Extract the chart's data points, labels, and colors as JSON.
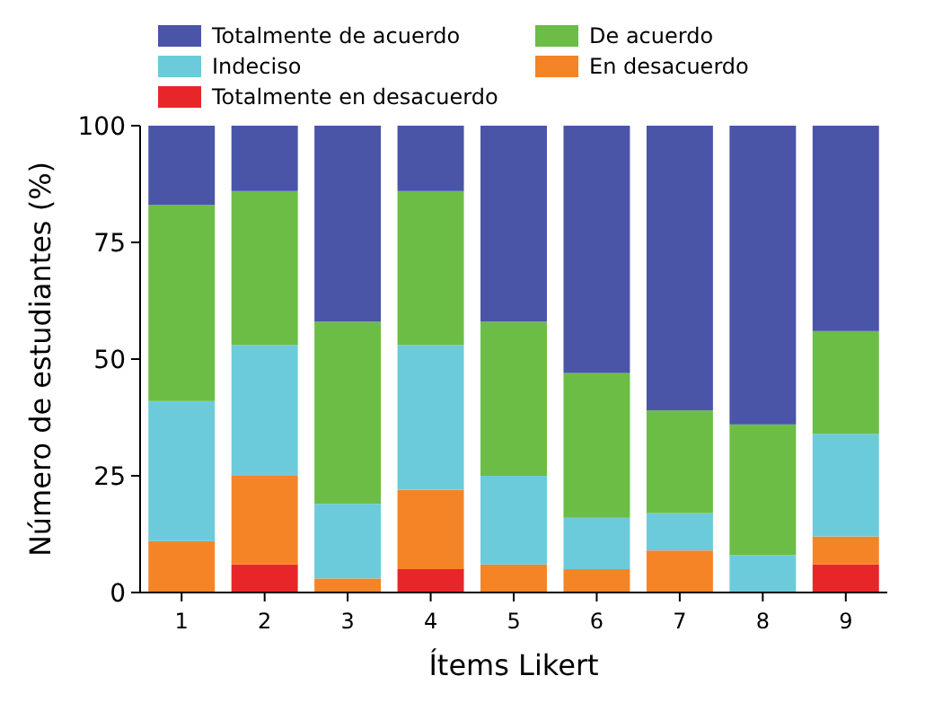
{
  "chart_data": {
    "type": "bar",
    "stacked": true,
    "xlabel": "Ítems Likert",
    "ylabel": "Número de estudiantes (%)",
    "categories": [
      "1",
      "2",
      "3",
      "4",
      "5",
      "6",
      "7",
      "8",
      "9"
    ],
    "series": [
      {
        "name": "Totalmente en desacuerdo",
        "color": "#e8262a",
        "values": [
          0,
          6,
          0,
          5,
          0,
          0,
          0,
          0,
          6
        ]
      },
      {
        "name": "En desacuerdo",
        "color": "#f58426",
        "values": [
          11,
          19,
          3,
          17,
          6,
          5,
          9,
          0,
          6
        ]
      },
      {
        "name": "Indeciso",
        "color": "#6ccbdb",
        "values": [
          30,
          28,
          16,
          31,
          19,
          11,
          8,
          8,
          22
        ]
      },
      {
        "name": "De acuerdo",
        "color": "#6cbd45",
        "values": [
          42,
          33,
          39,
          33,
          33,
          31,
          22,
          28,
          22
        ]
      },
      {
        "name": "Totalmente de acuerdo",
        "color": "#4a55a8",
        "values": [
          17,
          14,
          42,
          14,
          42,
          53,
          61,
          64,
          44
        ]
      }
    ],
    "ylim": [
      0,
      100
    ],
    "yticks": [
      0,
      25,
      50,
      75,
      100
    ],
    "legend": "top"
  }
}
